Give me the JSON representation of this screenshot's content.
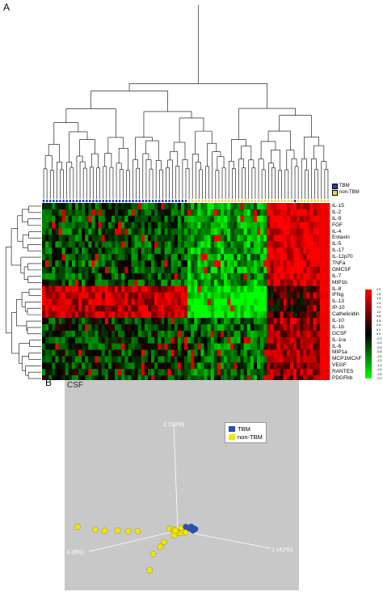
{
  "panel_a_label": "A",
  "panel_b_label": "B",
  "pca_title": "CSF",
  "heatmap_legend": [
    {
      "label": "TBM",
      "color": "#1f3fbf"
    },
    {
      "label": "non-TBM",
      "color": "#e8d84a"
    }
  ],
  "colorbar": {
    "ticks": [
      "2.0",
      "1.8",
      "1.6",
      "1.4",
      "1.2",
      "1.0",
      "0.8",
      "0.6",
      "0.4",
      "0.2",
      "0.0",
      "-0.2",
      "-0.4",
      "-0.6",
      "-0.8",
      "-1.0",
      "-1.2",
      "-1.4",
      "-1.6",
      "-1.8",
      "-2.0"
    ],
    "high_color": "#ff0000",
    "mid_color": "#000000",
    "low_color": "#00ff00"
  },
  "pca_legend": [
    {
      "label": "TBM",
      "color": "#2a4fb5"
    },
    {
      "label": "non-TBM",
      "color": "#f2e600"
    }
  ],
  "pca_axes": {
    "pc1": "1 (42%)",
    "pc2": "2 (13%)",
    "pc3": "3 (8%)"
  },
  "chart_data": [
    {
      "type": "heatmap",
      "title": "",
      "rows": [
        "IL-15",
        "IL-2",
        "IL-9",
        "FGF",
        "IL-4",
        "Eotaxin",
        "IL-5",
        "IL-17",
        "IL-12p70",
        "TNFa",
        "GMCSF",
        "IL-7",
        "MIP1b",
        "IL-8",
        "IFNg",
        "IL-13",
        "IP-10",
        "Cathelicidin",
        "IL-10",
        "IL-1b",
        "GCSF",
        "IL-1ra",
        "IL-6",
        "MIP1a",
        "MCP1MCAF",
        "VEGF",
        "RANTES",
        "PDGFbb"
      ],
      "column_groups": [
        {
          "group": "TBM",
          "approx_count": 44
        },
        {
          "group": "non-TBM",
          "approx_count": 43
        }
      ],
      "value_range": [
        -2.0,
        2.0
      ],
      "block_pattern": [
        {
          "rows": "IL-15..MIP1b",
          "tbm_cols": -0.6,
          "nonTBM_left": -1.2,
          "nonTBM_right": 1.8
        },
        {
          "rows": "IFNg..Cathelicidin",
          "tbm_cols": 1.4,
          "nonTBM_left": -2.0,
          "nonTBM_right": 0.4
        },
        {
          "rows": "IL-10..PDGFbb",
          "tbm_cols": -0.4,
          "nonTBM_left": -0.8,
          "nonTBM_right": 1.2
        }
      ]
    },
    {
      "type": "scatter",
      "title": "CSF",
      "dimensions": [
        "1 (42%)",
        "2 (13%)",
        "3 (8%)"
      ],
      "series": [
        {
          "name": "TBM",
          "points": [
            [
              0.4,
              0.1,
              -0.2
            ],
            [
              0.5,
              0.2,
              -0.1
            ],
            [
              0.6,
              0.0,
              -0.3
            ],
            [
              0.3,
              0.3,
              -0.1
            ],
            [
              0.55,
              -0.1,
              -0.2
            ],
            [
              0.45,
              0.25,
              -0.25
            ],
            [
              0.6,
              0.15,
              -0.15
            ]
          ]
        },
        {
          "name": "non-TBM",
          "points": [
            [
              -3.0,
              1.5,
              2.5
            ],
            [
              -2.5,
              1.0,
              2.0
            ],
            [
              -2.2,
              0.8,
              1.8
            ],
            [
              -1.8,
              0.7,
              1.5
            ],
            [
              -1.5,
              0.5,
              1.2
            ],
            [
              -1.2,
              0.4,
              1.0
            ],
            [
              -0.8,
              -2.0,
              0.5
            ],
            [
              -0.9,
              -3.5,
              0.6
            ],
            [
              -0.6,
              -1.4,
              0.3
            ],
            [
              -0.5,
              -1.0,
              0.2
            ],
            [
              -0.3,
              0.2,
              0.1
            ],
            [
              -0.2,
              0.1,
              0.0
            ],
            [
              -0.1,
              0.0,
              0.1
            ],
            [
              0.0,
              -0.2,
              0.0
            ],
            [
              0.1,
              -0.3,
              -0.1
            ],
            [
              0.2,
              0.0,
              0.0
            ],
            [
              0.1,
              0.2,
              -0.1
            ],
            [
              -0.1,
              -0.4,
              0.1
            ],
            [
              0.3,
              -0.2,
              -0.1
            ],
            [
              0.0,
              0.1,
              0.2
            ]
          ]
        }
      ]
    }
  ]
}
